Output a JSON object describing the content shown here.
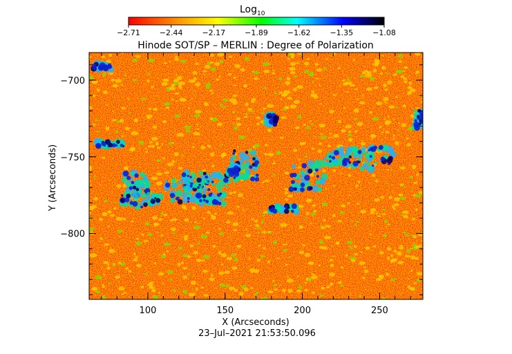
{
  "chart_data": {
    "type": "heatmap",
    "title": "Hinode SOT/SP – MERLIN : Degree of Polarization",
    "colorbar": {
      "label_main": "Log",
      "label_sub": "10",
      "ticks": [
        "−2.71",
        "−2.44",
        "−2.17",
        "−1.89",
        "−1.62",
        "−1.35",
        "−1.08"
      ],
      "range": [
        -2.71,
        -1.08
      ],
      "colormap": [
        "#ff0000",
        "#ff8c00",
        "#ffff00",
        "#00ff00",
        "#00ffff",
        "#0000ff",
        "#000000"
      ]
    },
    "xlabel": "X (Arcseconds)",
    "ylabel": "Y (Arcseconds)",
    "x_ticks": [
      "100",
      "150",
      "200",
      "250"
    ],
    "y_ticks": [
      "−700",
      "−750",
      "−800"
    ],
    "xlim": [
      62,
      278
    ],
    "ylim": [
      -843,
      -682
    ],
    "timestamp": "23–Jul–2021 21:53:50.096",
    "background_color": "#ff5a00"
  }
}
